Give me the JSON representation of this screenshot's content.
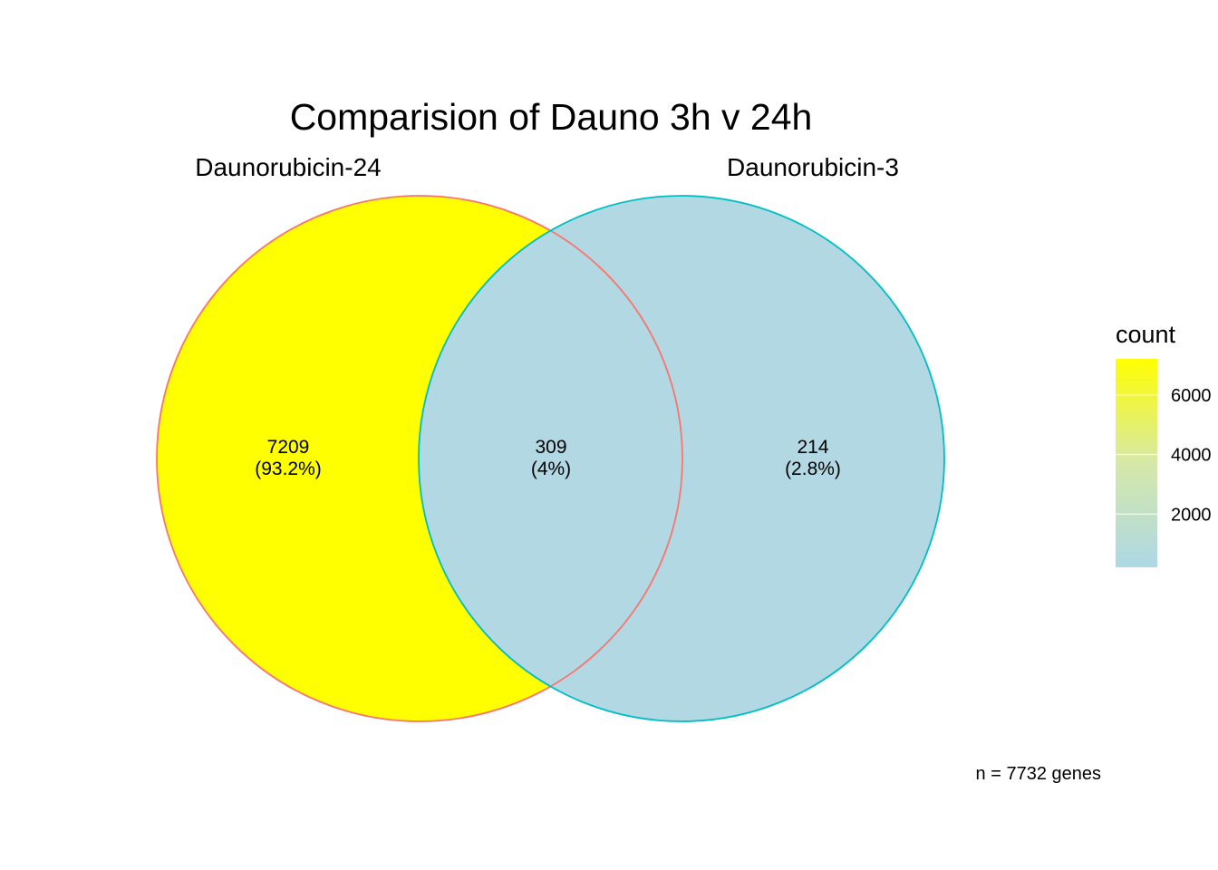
{
  "title": "Comparision of Dauno 3h v 24h",
  "caption": "n = 7732 genes",
  "sets": [
    {
      "name": "Daunorubicin-24",
      "outline_color": "#F8766D"
    },
    {
      "name": "Daunorubicin-3",
      "outline_color": "#00BFC4"
    }
  ],
  "regions": [
    {
      "id": "only-24",
      "count": "7209",
      "percent": "(93.2%)",
      "fill": "#FFFF00"
    },
    {
      "id": "overlap",
      "count": "309",
      "percent": "(4%)",
      "fill": "#B1D8E3"
    },
    {
      "id": "only-3",
      "count": "214",
      "percent": "(2.8%)",
      "fill": "#B1D8E3"
    }
  ],
  "legend": {
    "title": "count",
    "ticks": [
      "6000",
      "4000",
      "2000"
    ],
    "tick_values": [
      6000,
      4000,
      2000
    ],
    "range": [
      214,
      7209
    ],
    "low_color": "#ADD8E6",
    "high_color": "#FFFF00"
  }
}
